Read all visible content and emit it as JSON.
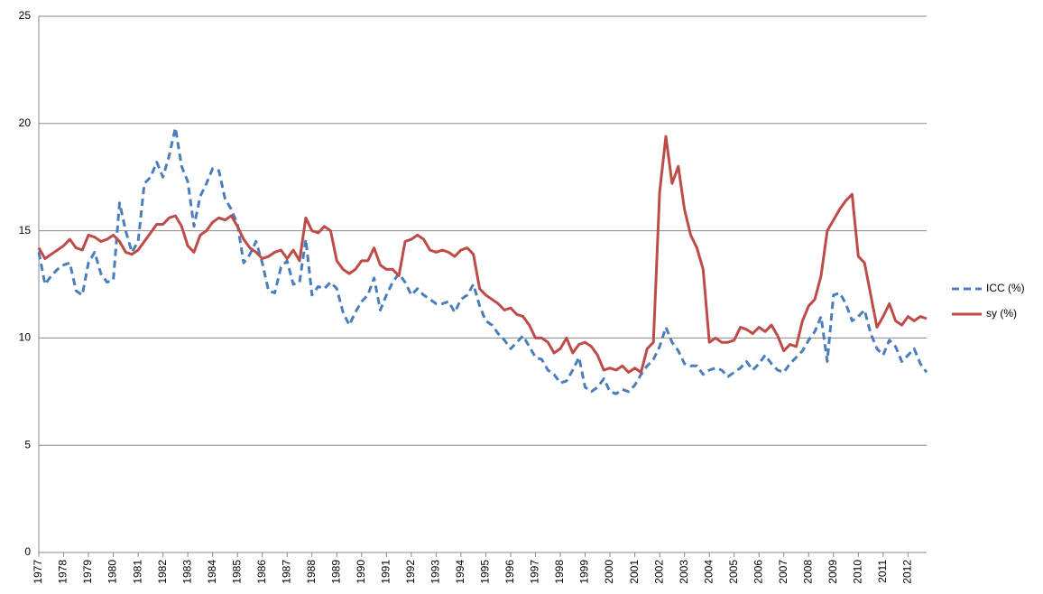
{
  "chart_data": {
    "type": "line",
    "x": [
      1977,
      1977.25,
      1977.5,
      1977.75,
      1978,
      1978.25,
      1978.5,
      1978.75,
      1979,
      1979.25,
      1979.5,
      1979.75,
      1980,
      1980.25,
      1980.5,
      1980.75,
      1981,
      1981.25,
      1981.5,
      1981.75,
      1982,
      1982.25,
      1982.5,
      1982.75,
      1983,
      1983.25,
      1983.5,
      1983.75,
      1984,
      1984.25,
      1984.5,
      1984.75,
      1985,
      1985.25,
      1985.5,
      1985.75,
      1986,
      1986.25,
      1986.5,
      1986.75,
      1987,
      1987.25,
      1987.5,
      1987.75,
      1988,
      1988.25,
      1988.5,
      1988.75,
      1989,
      1989.25,
      1989.5,
      1989.75,
      1990,
      1990.25,
      1990.5,
      1990.75,
      1991,
      1991.25,
      1991.5,
      1991.75,
      1992,
      1992.25,
      1992.5,
      1992.75,
      1993,
      1993.25,
      1993.5,
      1993.75,
      1994,
      1994.25,
      1994.5,
      1994.75,
      1995,
      1995.25,
      1995.5,
      1995.75,
      1996,
      1996.25,
      1996.5,
      1996.75,
      1997,
      1997.25,
      1997.5,
      1997.75,
      1998,
      1998.25,
      1998.5,
      1998.75,
      1999,
      1999.25,
      1999.5,
      1999.75,
      2000,
      2000.25,
      2000.5,
      2000.75,
      2001,
      2001.25,
      2001.5,
      2001.75,
      2002,
      2002.25,
      2002.5,
      2002.75,
      2003,
      2003.25,
      2003.5,
      2003.75,
      2004,
      2004.25,
      2004.5,
      2004.75,
      2005,
      2005.25,
      2005.5,
      2005.75,
      2006,
      2006.25,
      2006.5,
      2006.75,
      2007,
      2007.25,
      2007.5,
      2007.75,
      2008,
      2008.25,
      2008.5,
      2008.75,
      2009,
      2009.25,
      2009.5,
      2009.75,
      2010,
      2010.25,
      2010.5,
      2010.75,
      2011,
      2011.25,
      2011.5,
      2011.75,
      2012,
      2012.25,
      2012.5,
      2012.75
    ],
    "series": [
      {
        "name": "ICC (%)",
        "color": "#4a7ebb",
        "dash": true,
        "values": [
          14.0,
          12.5,
          12.9,
          13.2,
          13.4,
          13.5,
          12.2,
          12.0,
          13.5,
          14.0,
          13.0,
          12.6,
          12.7,
          16.3,
          15.0,
          14.0,
          14.5,
          17.2,
          17.5,
          18.2,
          17.5,
          18.5,
          19.8,
          18.0,
          17.3,
          15.2,
          16.6,
          17.2,
          17.9,
          17.8,
          16.5,
          16.0,
          15.3,
          13.5,
          13.9,
          14.5,
          13.5,
          12.2,
          12.1,
          13.3,
          13.6,
          12.5,
          12.6,
          14.6,
          12.0,
          12.4,
          12.3,
          12.6,
          12.3,
          11.2,
          10.6,
          11.2,
          11.7,
          12.0,
          12.8,
          11.3,
          12.0,
          12.6,
          13.0,
          12.6,
          12.0,
          12.3,
          12.0,
          11.8,
          11.6,
          11.6,
          11.7,
          11.2,
          11.8,
          12.0,
          12.5,
          11.5,
          10.8,
          10.6,
          10.2,
          9.9,
          9.5,
          9.8,
          10.1,
          9.6,
          9.1,
          9.0,
          8.5,
          8.3,
          7.9,
          8.0,
          8.5,
          9.1,
          7.7,
          7.5,
          7.7,
          8.1,
          7.5,
          7.4,
          7.6,
          7.5,
          7.8,
          8.3,
          8.7,
          9.0,
          9.6,
          10.5,
          9.8,
          9.4,
          8.8,
          8.7,
          8.7,
          8.3,
          8.5,
          8.6,
          8.5,
          8.2,
          8.4,
          8.6,
          8.9,
          8.5,
          8.8,
          9.2,
          8.8,
          8.5,
          8.4,
          8.8,
          9.1,
          9.4,
          9.9,
          10.3,
          11.0,
          8.9,
          12.0,
          12.1,
          11.6,
          10.8,
          11.0,
          11.3,
          10.2,
          9.5,
          9.2,
          9.9,
          9.6,
          8.9,
          9.2,
          9.5,
          8.8,
          8.4
        ]
      },
      {
        "name": "sy (%)",
        "color": "#be4b48",
        "dash": false,
        "values": [
          14.2,
          13.7,
          13.9,
          14.1,
          14.3,
          14.6,
          14.2,
          14.1,
          14.8,
          14.7,
          14.5,
          14.6,
          14.8,
          14.5,
          14.0,
          13.9,
          14.1,
          14.5,
          14.9,
          15.3,
          15.3,
          15.6,
          15.7,
          15.2,
          14.3,
          14.0,
          14.8,
          15.0,
          15.4,
          15.6,
          15.5,
          15.7,
          15.2,
          14.6,
          14.2,
          14.0,
          13.7,
          13.8,
          14.0,
          14.1,
          13.7,
          14.1,
          13.6,
          15.6,
          15.0,
          14.9,
          15.2,
          15.0,
          13.6,
          13.2,
          13.0,
          13.2,
          13.6,
          13.6,
          14.2,
          13.4,
          13.2,
          13.2,
          12.9,
          14.5,
          14.6,
          14.8,
          14.6,
          14.1,
          14.0,
          14.1,
          14.0,
          13.8,
          14.1,
          14.2,
          13.9,
          12.3,
          12.0,
          11.8,
          11.6,
          11.3,
          11.4,
          11.1,
          11.0,
          10.6,
          10.0,
          10.0,
          9.8,
          9.3,
          9.5,
          10.0,
          9.3,
          9.7,
          9.8,
          9.6,
          9.2,
          8.5,
          8.6,
          8.5,
          8.7,
          8.4,
          8.6,
          8.4,
          9.5,
          9.8,
          16.8,
          19.4,
          17.2,
          18.0,
          16.0,
          14.8,
          14.2,
          13.2,
          9.8,
          10.0,
          9.8,
          9.8,
          9.9,
          10.5,
          10.4,
          10.2,
          10.5,
          10.3,
          10.6,
          10.1,
          9.4,
          9.7,
          9.6,
          10.8,
          11.5,
          11.8,
          12.9,
          15.0,
          15.5,
          16.0,
          16.4,
          16.7,
          13.8,
          13.5,
          12.0,
          10.5,
          11.0,
          11.6,
          10.8,
          10.6,
          11.0,
          10.8,
          11.0,
          10.9
        ]
      }
    ],
    "xlim": [
      1977,
      2012.75
    ],
    "xticks": [
      1977,
      1978,
      1979,
      1980,
      1981,
      1982,
      1983,
      1984,
      1985,
      1986,
      1987,
      1988,
      1989,
      1990,
      1991,
      1992,
      1993,
      1994,
      1995,
      1996,
      1997,
      1998,
      1999,
      2000,
      2001,
      2002,
      2003,
      2004,
      2005,
      2006,
      2007,
      2008,
      2009,
      2010,
      2011,
      2012
    ],
    "ylim": [
      0,
      25
    ],
    "yticks": [
      0,
      5,
      10,
      15,
      20,
      25
    ],
    "grid": true,
    "legend": "right"
  }
}
